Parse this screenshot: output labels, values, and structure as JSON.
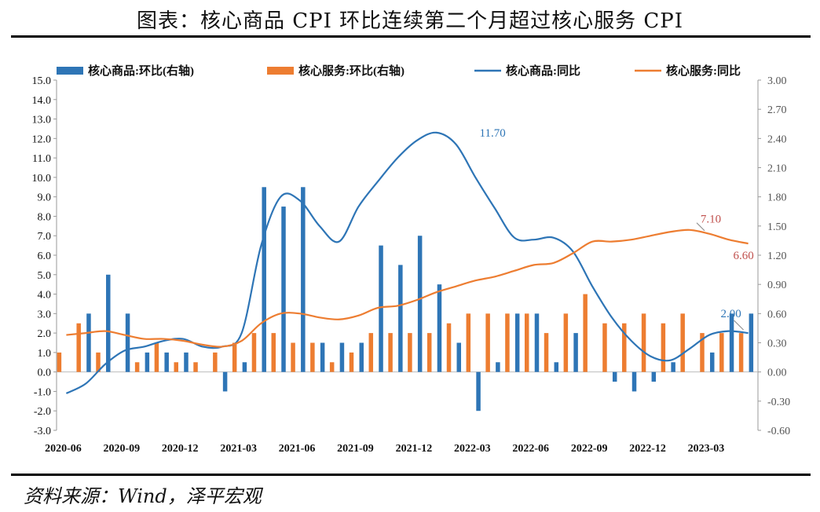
{
  "title": "图表：核心商品 CPI 环比连续第二个月超过核心服务 CPI",
  "source": "资料来源：Wind，泽平宏观",
  "chart_data": {
    "type": "bar+line",
    "x": [
      "2020-06",
      "2020-07",
      "2020-08",
      "2020-09",
      "2020-10",
      "2020-11",
      "2020-12",
      "2021-01",
      "2021-02",
      "2021-03",
      "2021-04",
      "2021-05",
      "2021-06",
      "2021-07",
      "2021-08",
      "2021-09",
      "2021-10",
      "2021-11",
      "2021-12",
      "2022-01",
      "2022-02",
      "2022-03",
      "2022-04",
      "2022-05",
      "2022-06",
      "2022-07",
      "2022-08",
      "2022-09",
      "2022-10",
      "2022-11",
      "2022-12",
      "2023-01",
      "2023-02",
      "2023-03",
      "2023-04",
      "2023-05"
    ],
    "x_tick_labels": [
      "2020-06",
      "2020-09",
      "2020-12",
      "2021-03",
      "2021-06",
      "2021-09",
      "2021-12",
      "2022-03",
      "2022-06",
      "2022-09",
      "2022-12",
      "2023-03"
    ],
    "y_left": {
      "min": -3.0,
      "max": 15.0,
      "step": 1.0,
      "ticks": [
        "-3.0",
        "-2.0",
        "-1.0",
        "0.0",
        "1.0",
        "2.0",
        "3.0",
        "4.0",
        "5.0",
        "6.0",
        "7.0",
        "8.0",
        "9.0",
        "10.0",
        "11.0",
        "12.0",
        "13.0",
        "14.0",
        "15.0"
      ]
    },
    "y_right": {
      "min": -0.6,
      "max": 3.0,
      "step": 0.3,
      "ticks": [
        "-0.60",
        "-0.30",
        "0.00",
        "0.30",
        "0.60",
        "0.90",
        "1.20",
        "1.50",
        "1.80",
        "2.10",
        "2.40",
        "2.70",
        "3.00"
      ]
    },
    "legend_position": "top",
    "series": [
      {
        "name": "核心商品:环比(右轴)",
        "kind": "bar",
        "axis": "right",
        "color": "#2e75b6",
        "values": [
          0.0,
          0.6,
          1.0,
          0.6,
          0.2,
          0.2,
          0.2,
          0.0,
          -0.2,
          0.1,
          1.9,
          1.7,
          1.9,
          0.3,
          0.3,
          0.3,
          1.3,
          1.1,
          1.4,
          0.9,
          0.3,
          -0.4,
          0.1,
          0.6,
          0.6,
          0.1,
          0.4,
          0.0,
          -0.1,
          -0.2,
          -0.1,
          0.1,
          0.0,
          0.2,
          0.6,
          0.6
        ]
      },
      {
        "name": "核心服务:环比(右轴)",
        "kind": "bar",
        "axis": "right",
        "color": "#ed7d31",
        "values": [
          0.2,
          0.5,
          0.2,
          0.0,
          0.1,
          0.3,
          0.1,
          0.1,
          0.2,
          0.3,
          0.4,
          0.4,
          0.3,
          0.3,
          0.1,
          0.2,
          0.4,
          0.4,
          0.4,
          0.4,
          0.5,
          0.6,
          0.6,
          0.6,
          0.6,
          0.4,
          0.6,
          0.8,
          0.5,
          0.5,
          0.6,
          0.5,
          0.6,
          0.4,
          0.4,
          0.4
        ]
      },
      {
        "name": "核心商品:同比",
        "kind": "line",
        "axis": "left",
        "color": "#2e75b6",
        "values": [
          -1.1,
          -0.6,
          0.4,
          1.1,
          1.3,
          1.6,
          1.7,
          1.3,
          1.3,
          2.0,
          6.5,
          9.0,
          8.8,
          7.5,
          6.7,
          8.5,
          9.8,
          11.0,
          11.9,
          12.3,
          11.7,
          10.0,
          8.4,
          6.9,
          6.8,
          6.9,
          6.2,
          4.4,
          2.8,
          1.6,
          0.8,
          0.6,
          1.2,
          1.9,
          2.1,
          2.0
        ]
      },
      {
        "name": "核心服务:同比",
        "kind": "line",
        "axis": "left",
        "color": "#ed7d31",
        "values": [
          1.9,
          2.0,
          2.1,
          1.9,
          1.7,
          1.7,
          1.6,
          1.4,
          1.3,
          1.6,
          2.5,
          3.0,
          3.0,
          2.8,
          2.7,
          2.9,
          3.3,
          3.4,
          3.7,
          4.1,
          4.4,
          4.7,
          4.9,
          5.2,
          5.5,
          5.6,
          6.1,
          6.7,
          6.7,
          6.8,
          7.0,
          7.2,
          7.3,
          7.1,
          6.8,
          6.6
        ]
      }
    ],
    "annotations": [
      {
        "text": "11.70",
        "series": 2,
        "x": "2022-02",
        "y": 11.7
      },
      {
        "text": "7.10",
        "series": 3,
        "x": "2023-03",
        "y": 7.1
      },
      {
        "text": "6.60",
        "series": 3,
        "x": "2023-05",
        "y": 6.6
      },
      {
        "text": "2.00",
        "series": 2,
        "x": "2023-05",
        "y": 2.0
      }
    ]
  }
}
